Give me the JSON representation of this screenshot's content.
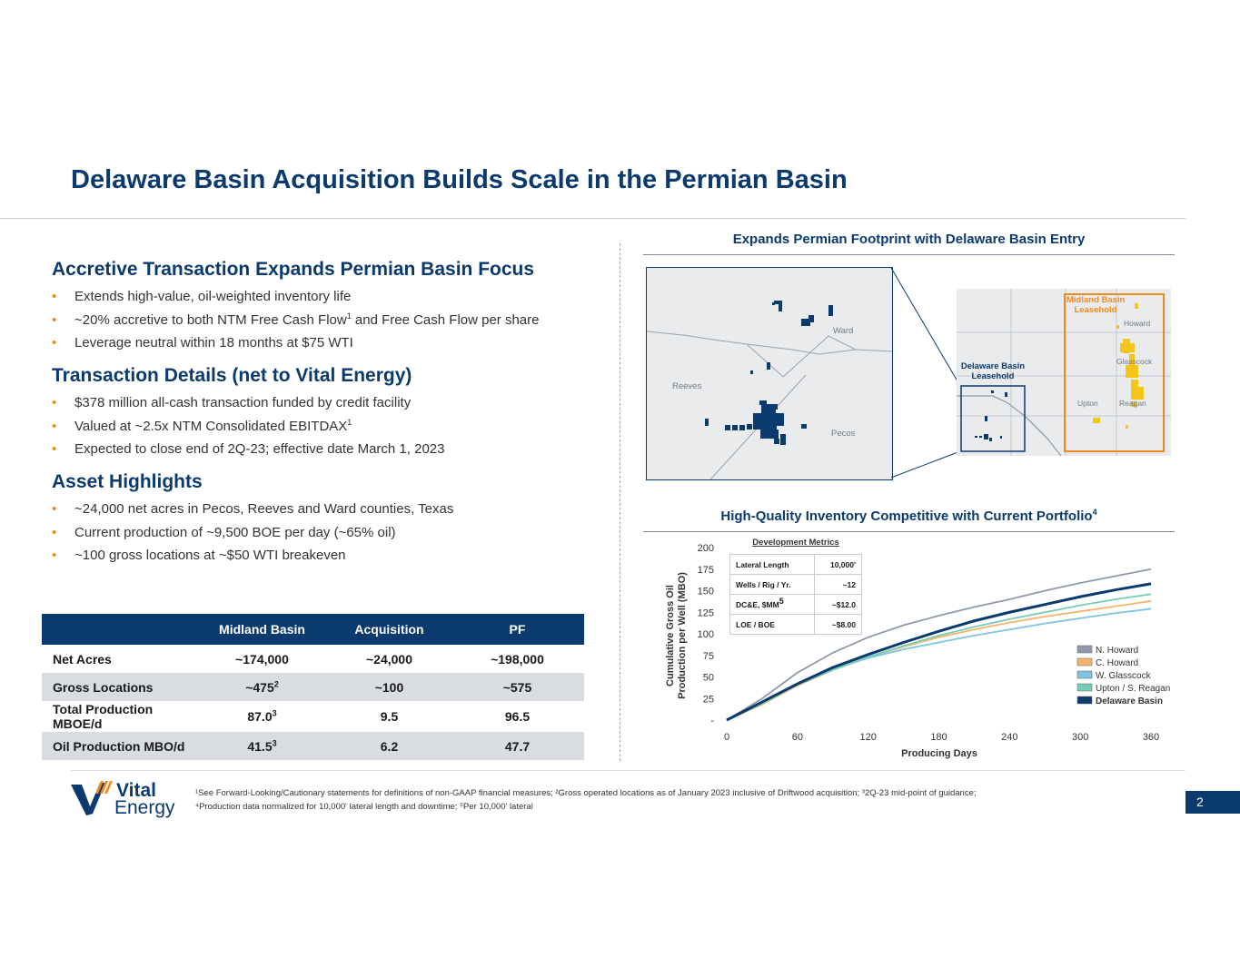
{
  "title": "Delaware Basin Acquisition Builds Scale in the Permian Basin",
  "sections": [
    {
      "heading": "Accretive Transaction Expands Permian Basin Focus",
      "bullets": [
        {
          "text": "Extends high-value, oil-weighted inventory life"
        },
        {
          "pre": "~20% accretive to both NTM Free Cash Flow",
          "sup": "1",
          "post": " and Free Cash Flow per share"
        },
        {
          "text": "Leverage neutral within 18 months at $75 WTI"
        }
      ]
    },
    {
      "heading": "Transaction Details (net to Vital Energy)",
      "bullets": [
        {
          "text": "$378 million all-cash transaction funded by credit facility"
        },
        {
          "pre": "Valued at ~2.5x NTM Consolidated EBITDAX",
          "sup": "1",
          "post": ""
        },
        {
          "text": "Expected to close end of 2Q-23; effective date March 1, 2023"
        }
      ]
    },
    {
      "heading": "Asset Highlights",
      "bullets": [
        {
          "text": "~24,000 net acres in Pecos, Reeves and Ward counties, Texas"
        },
        {
          "text": "Current production of ~9,500 BOE per day (~65% oil)"
        },
        {
          "text": "~100 gross locations at ~$50 WTI breakeven"
        }
      ]
    }
  ],
  "table": {
    "headers": [
      "",
      "Midland Basin",
      "Acquisition",
      "PF"
    ],
    "rows": [
      {
        "label": "Net Acres",
        "midland": "~174,000",
        "midland_sup": "",
        "acq": "~24,000",
        "pf": "~198,000"
      },
      {
        "label": "Gross Locations",
        "midland": "~475",
        "midland_sup": "2",
        "acq": "~100",
        "pf": "~575"
      },
      {
        "label": "Total Production MBOE/d",
        "midland": "87.0",
        "midland_sup": "3",
        "acq": "9.5",
        "pf": "96.5"
      },
      {
        "label": "Oil Production MBO/d",
        "midland": "41.5",
        "midland_sup": "3",
        "acq": "6.2",
        "pf": "47.7"
      }
    ]
  },
  "map_panel": {
    "title": "Expands Permian Footprint with Delaware Basin Entry",
    "detail_labels": {
      "ward": "Ward",
      "reeves": "Reeves",
      "pecos": "Pecos"
    },
    "overview_labels": {
      "midland_leasehold_1": "Midland Basin",
      "midland_leasehold_2": "Leasehold",
      "delaware_leasehold_1": "Delaware Basin",
      "delaware_leasehold_2": "Leasehold",
      "howard": "Howard",
      "glasscock": "Glasscock",
      "upton": "Upton",
      "reagan": "Reagan"
    },
    "colors": {
      "delaware": "#0b3a6e",
      "midland": "#f5c518",
      "midland_box": "#f08a1d"
    }
  },
  "chart_panel": {
    "title": "High-Quality Inventory Competitive with Current Portfolio",
    "title_sup": "4",
    "dev_metrics": {
      "title": "Development Metrics",
      "rows": [
        {
          "label": "Lateral Length",
          "value": "10,000'"
        },
        {
          "label": "Wells / Rig / Yr.",
          "value": "~12"
        },
        {
          "label": "DC&E, $MM",
          "label_sup": "5",
          "value": "~$12.0"
        },
        {
          "label": "LOE / BOE",
          "value": "~$8.00"
        }
      ]
    }
  },
  "chart_data": {
    "type": "line",
    "xlabel": "Producing Days",
    "ylabel_line1": "Cumulative Gross Oil",
    "ylabel_line2": "Production per Well (MBO)",
    "xlim": [
      0,
      360
    ],
    "ylim": [
      0,
      200
    ],
    "x_ticks": [
      "0",
      "60",
      "120",
      "180",
      "240",
      "300",
      "360"
    ],
    "y_ticks": [
      "-",
      "25",
      "50",
      "75",
      "100",
      "125",
      "150",
      "175",
      "200"
    ],
    "legend_position": "bottom-right",
    "x": [
      0,
      30,
      60,
      90,
      120,
      150,
      180,
      210,
      240,
      270,
      300,
      330,
      360
    ],
    "series": [
      {
        "name": "N. Howard",
        "color": "#8e9aab",
        "values": [
          0,
          25,
          55,
          78,
          96,
          110,
          121,
          131,
          140,
          150,
          159,
          167,
          175
        ]
      },
      {
        "name": "C. Howard",
        "color": "#f6b46b",
        "values": [
          0,
          18,
          40,
          58,
          73,
          85,
          96,
          105,
          113,
          120,
          126,
          132,
          138
        ]
      },
      {
        "name": "W. Glasscock",
        "color": "#7fc4e2",
        "values": [
          0,
          20,
          42,
          59,
          72,
          82,
          90,
          98,
          105,
          112,
          118,
          124,
          129
        ]
      },
      {
        "name": "Upton / S. Reagan",
        "color": "#76cdb6",
        "values": [
          0,
          19,
          41,
          58,
          73,
          86,
          98,
          108,
          117,
          125,
          133,
          140,
          146
        ]
      },
      {
        "name": "Delaware Basin",
        "color": "#0b3a6e",
        "values": [
          0,
          21,
          42,
          61,
          76,
          90,
          103,
          115,
          125,
          134,
          143,
          151,
          158
        ]
      }
    ]
  },
  "logo": {
    "line1": "Vital",
    "line2": "Energy"
  },
  "footnote": {
    "line1": "¹See Forward-Looking/Cautionary statements for definitions of non-GAAP financial measures; ²Gross operated locations as of January 2023 inclusive of Driftwood acquisition; ³2Q-23 mid-point of guidance;",
    "line2": "⁴Production data normalized for 10,000' lateral length and downtime; ⁵Per 10,000' lateral"
  },
  "page_number": "2"
}
